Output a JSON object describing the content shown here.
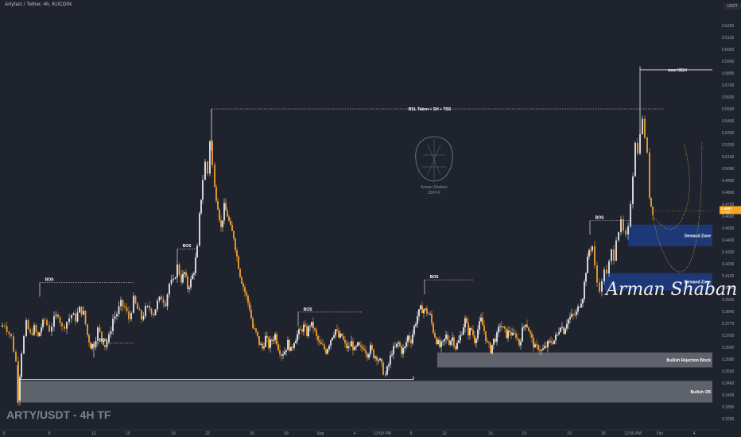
{
  "header": {
    "title": "Artyfact / Tether, 4h, KUCOIN",
    "currency": "USDT"
  },
  "big_title": "ARTY/USDT - 4H TF",
  "watermark": {
    "name": "Arman Shaban",
    "year": "2024 ©"
  },
  "signature": "Arman Shaban",
  "colors": {
    "background": "#1f232e",
    "up_candle": "#e8e8e8",
    "down_candle": "#f0a030",
    "demand_zone": "#1e3a7a",
    "gray_zone": "#6a6d74",
    "price_tag": "#f5a623"
  },
  "chart_data": {
    "type": "candlestick",
    "y_axis": {
      "ylim": [
        0.323,
        0.63
      ],
      "ticks": [
        "0.6200",
        "0.6100",
        "0.6000",
        "0.5900",
        "0.5800",
        "0.5700",
        "0.5600",
        "0.5500",
        "0.5400",
        "0.5300",
        "0.5200",
        "0.5100",
        "0.5000",
        "0.4900",
        "0.4800",
        "0.4700",
        "0.4600",
        "0.4500",
        "0.4400",
        "0.4300",
        "0.4200",
        "0.4100",
        "0.4000",
        "0.3900",
        "0.3840",
        "0.3770",
        "0.3700",
        "0.3640",
        "0.3580",
        "0.3520",
        "0.3460",
        "0.3405",
        "0.3350",
        "0.3295"
      ],
      "current_price": "0.4857",
      "current_sub": "1h 15m"
    },
    "x_axis": {
      "ticks": [
        {
          "label": "5",
          "pos": 5
        },
        {
          "label": "8",
          "pos": 62
        },
        {
          "label": "12",
          "pos": 118
        },
        {
          "label": "15",
          "pos": 161
        },
        {
          "label": "19",
          "pos": 218
        },
        {
          "label": "22",
          "pos": 261
        },
        {
          "label": "26",
          "pos": 317
        },
        {
          "label": "29",
          "pos": 360
        },
        {
          "label": "Sep",
          "pos": 403
        },
        {
          "label": "4",
          "pos": 446
        },
        {
          "label": "12:00 PM",
          "pos": 481
        },
        {
          "label": "9",
          "pos": 517
        },
        {
          "label": "12",
          "pos": 559
        },
        {
          "label": "16",
          "pos": 617
        },
        {
          "label": "19",
          "pos": 659
        },
        {
          "label": "23",
          "pos": 716
        },
        {
          "label": "26",
          "pos": 759
        },
        {
          "label": "12:00 PM",
          "pos": 796
        },
        {
          "label": "Oct",
          "pos": 830
        },
        {
          "label": "4",
          "pos": 873
        }
      ]
    },
    "key_points": [
      [
        0,
        0.399
      ],
      [
        6,
        0.401
      ],
      [
        14,
        0.391
      ],
      [
        20,
        0.373
      ],
      [
        23,
        0.347
      ],
      [
        27,
        0.381
      ],
      [
        33,
        0.401
      ],
      [
        38,
        0.393
      ],
      [
        43,
        0.398
      ],
      [
        48,
        0.391
      ],
      [
        52,
        0.399
      ],
      [
        56,
        0.404
      ],
      [
        62,
        0.397
      ],
      [
        68,
        0.404
      ],
      [
        73,
        0.409
      ],
      [
        78,
        0.398
      ],
      [
        84,
        0.403
      ],
      [
        90,
        0.408
      ],
      [
        95,
        0.405
      ],
      [
        100,
        0.412
      ],
      [
        105,
        0.409
      ],
      [
        110,
        0.393
      ],
      [
        114,
        0.385
      ],
      [
        118,
        0.386
      ],
      [
        123,
        0.397
      ],
      [
        128,
        0.391
      ],
      [
        132,
        0.385
      ],
      [
        137,
        0.391
      ],
      [
        142,
        0.405
      ],
      [
        147,
        0.409
      ],
      [
        152,
        0.416
      ],
      [
        157,
        0.413
      ],
      [
        162,
        0.405
      ],
      [
        168,
        0.419
      ],
      [
        173,
        0.412
      ],
      [
        178,
        0.405
      ],
      [
        183,
        0.412
      ],
      [
        188,
        0.413
      ],
      [
        193,
        0.409
      ],
      [
        198,
        0.417
      ],
      [
        203,
        0.421
      ],
      [
        208,
        0.417
      ],
      [
        213,
        0.431
      ],
      [
        218,
        0.432
      ],
      [
        223,
        0.444
      ],
      [
        228,
        0.434
      ],
      [
        232,
        0.439
      ],
      [
        236,
        0.428
      ],
      [
        240,
        0.433
      ],
      [
        244,
        0.441
      ],
      [
        248,
        0.457
      ],
      [
        251,
        0.481
      ],
      [
        255,
        0.509
      ],
      [
        258,
        0.521
      ],
      [
        261,
        0.513
      ],
      [
        264,
        0.538
      ],
      [
        267,
        0.519
      ],
      [
        270,
        0.502
      ],
      [
        274,
        0.489
      ],
      [
        278,
        0.472
      ],
      [
        282,
        0.488
      ],
      [
        286,
        0.482
      ],
      [
        290,
        0.472
      ],
      [
        294,
        0.466
      ],
      [
        298,
        0.451
      ],
      [
        302,
        0.438
      ],
      [
        306,
        0.429
      ],
      [
        310,
        0.421
      ],
      [
        314,
        0.413
      ],
      [
        318,
        0.398
      ],
      [
        322,
        0.394
      ],
      [
        326,
        0.387
      ],
      [
        330,
        0.383
      ],
      [
        334,
        0.391
      ],
      [
        338,
        0.385
      ],
      [
        342,
        0.389
      ],
      [
        346,
        0.393
      ],
      [
        350,
        0.384
      ],
      [
        354,
        0.379
      ],
      [
        358,
        0.381
      ],
      [
        362,
        0.387
      ],
      [
        366,
        0.381
      ],
      [
        370,
        0.389
      ],
      [
        374,
        0.393
      ],
      [
        378,
        0.396
      ],
      [
        382,
        0.399
      ],
      [
        386,
        0.394
      ],
      [
        390,
        0.401
      ],
      [
        394,
        0.399
      ],
      [
        398,
        0.391
      ],
      [
        402,
        0.386
      ],
      [
        406,
        0.384
      ],
      [
        410,
        0.381
      ],
      [
        414,
        0.387
      ],
      [
        418,
        0.393
      ],
      [
        422,
        0.397
      ],
      [
        426,
        0.391
      ],
      [
        430,
        0.392
      ],
      [
        434,
        0.385
      ],
      [
        438,
        0.383
      ],
      [
        442,
        0.387
      ],
      [
        446,
        0.381
      ],
      [
        450,
        0.385
      ],
      [
        454,
        0.382
      ],
      [
        458,
        0.384
      ],
      [
        462,
        0.379
      ],
      [
        466,
        0.383
      ],
      [
        470,
        0.378
      ],
      [
        474,
        0.377
      ],
      [
        478,
        0.373
      ],
      [
        482,
        0.366
      ],
      [
        485,
        0.363
      ],
      [
        489,
        0.371
      ],
      [
        493,
        0.381
      ],
      [
        497,
        0.383
      ],
      [
        501,
        0.387
      ],
      [
        505,
        0.381
      ],
      [
        509,
        0.383
      ],
      [
        513,
        0.392
      ],
      [
        517,
        0.389
      ],
      [
        521,
        0.399
      ],
      [
        525,
        0.407
      ],
      [
        529,
        0.412
      ],
      [
        533,
        0.412
      ],
      [
        537,
        0.41
      ],
      [
        541,
        0.407
      ],
      [
        545,
        0.396
      ],
      [
        549,
        0.389
      ],
      [
        553,
        0.384
      ],
      [
        557,
        0.386
      ],
      [
        561,
        0.392
      ],
      [
        565,
        0.388
      ],
      [
        569,
        0.391
      ],
      [
        573,
        0.384
      ],
      [
        577,
        0.388
      ],
      [
        581,
        0.396
      ],
      [
        585,
        0.404
      ],
      [
        589,
        0.395
      ],
      [
        593,
        0.397
      ],
      [
        597,
        0.389
      ],
      [
        601,
        0.397
      ],
      [
        605,
        0.404
      ],
      [
        609,
        0.396
      ],
      [
        613,
        0.386
      ],
      [
        617,
        0.382
      ],
      [
        621,
        0.389
      ],
      [
        625,
        0.392
      ],
      [
        629,
        0.401
      ],
      [
        633,
        0.397
      ],
      [
        637,
        0.393
      ],
      [
        641,
        0.396
      ],
      [
        645,
        0.392
      ],
      [
        649,
        0.393
      ],
      [
        653,
        0.386
      ],
      [
        657,
        0.396
      ],
      [
        661,
        0.403
      ],
      [
        665,
        0.397
      ],
      [
        669,
        0.389
      ],
      [
        673,
        0.383
      ],
      [
        677,
        0.384
      ],
      [
        681,
        0.381
      ],
      [
        685,
        0.383
      ],
      [
        689,
        0.386
      ],
      [
        693,
        0.388
      ],
      [
        697,
        0.389
      ],
      [
        701,
        0.393
      ],
      [
        705,
        0.401
      ],
      [
        709,
        0.396
      ],
      [
        713,
        0.403
      ],
      [
        717,
        0.406
      ],
      [
        721,
        0.407
      ],
      [
        725,
        0.409
      ],
      [
        729,
        0.416
      ],
      [
        733,
        0.422
      ],
      [
        737,
        0.441
      ],
      [
        741,
        0.456
      ],
      [
        745,
        0.459
      ],
      [
        748,
        0.443
      ],
      [
        751,
        0.432
      ],
      [
        754,
        0.428
      ],
      [
        757,
        0.431
      ],
      [
        760,
        0.443
      ],
      [
        763,
        0.437
      ],
      [
        766,
        0.446
      ],
      [
        769,
        0.455
      ],
      [
        772,
        0.451
      ],
      [
        775,
        0.466
      ],
      [
        778,
        0.471
      ],
      [
        781,
        0.476
      ],
      [
        784,
        0.469
      ],
      [
        787,
        0.465
      ],
      [
        790,
        0.471
      ],
      [
        793,
        0.492
      ],
      [
        796,
        0.513
      ],
      [
        799,
        0.538
      ],
      [
        802,
        0.527
      ],
      [
        805,
        0.545
      ],
      [
        808,
        0.552
      ],
      [
        811,
        0.541
      ],
      [
        814,
        0.526
      ],
      [
        817,
        0.497
      ],
      [
        819,
        0.489
      ],
      [
        821,
        0.485
      ]
    ],
    "annotations": {
      "bos": [
        {
          "label": "BOS",
          "x1": 50,
          "x2": 168,
          "y": 0.4319
        },
        {
          "label": "BOS",
          "x1": 118,
          "x2": 168,
          "y": 0.3868
        },
        {
          "label": "BOS",
          "x1": 223,
          "x2": 249,
          "y": 0.4569
        },
        {
          "label": "BOS",
          "x1": 375,
          "x2": 455,
          "y": 0.4099
        },
        {
          "label": "BOS",
          "x1": 534,
          "x2": 595,
          "y": 0.4339
        },
        {
          "label": "BOS",
          "x1": 742,
          "x2": 792,
          "y": 0.4779
        }
      ],
      "bsl": {
        "label": "BSL Taken + SH + TSS",
        "x1": 266,
        "x2": 835,
        "y": 0.5609
      },
      "new_high": {
        "label": "new HIGH",
        "x1": 805,
        "x2": 896,
        "y": 0.5899
      },
      "zones": [
        {
          "label": "Demand Zone",
          "x1": 790,
          "x2": 896,
          "y_top": 0.4749,
          "y_bot": 0.4589,
          "kind": "demand"
        },
        {
          "label": "Demand Zone",
          "x1": 760,
          "x2": 896,
          "y_top": 0.4389,
          "y_bot": 0.4259,
          "kind": "demand"
        },
        {
          "label": "Bullish Rejection Block",
          "x1": 550,
          "x2": 896,
          "y_top": 0.3799,
          "y_bot": 0.3688,
          "kind": "gray"
        },
        {
          "label": "Bullish OB",
          "x1": 22,
          "x2": 896,
          "y_top": 0.3588,
          "y_bot": 0.3428,
          "kind": "gray"
        }
      ],
      "ob_ref_line": {
        "x1": 22,
        "x2": 520,
        "y": 0.3598
      }
    }
  }
}
